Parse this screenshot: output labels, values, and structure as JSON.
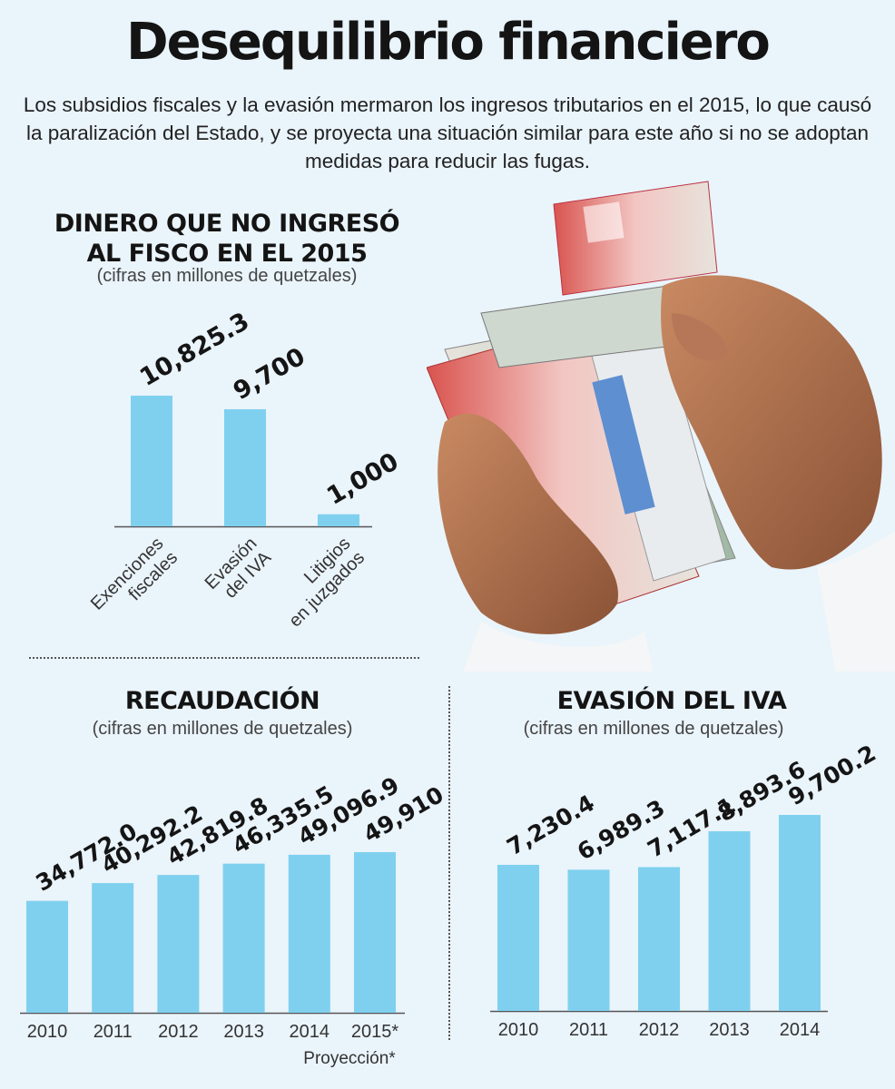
{
  "header": {
    "title": "Desequilibrio financiero",
    "intro": "Los subsidios fiscales y la evasión mermaron los ingresos tributarios en el 2015, lo que causó la paralización del Estado, y se proyecta una situación similar para este año si no se adoptan medidas para reducir las fugas."
  },
  "sections": {
    "dinero": {
      "title_line1": "DINERO QUE NO INGRESÓ",
      "title_line2": "AL FISCO EN EL 2015",
      "subtitle": "(cifras en millones de quetzales)"
    },
    "recaudacion": {
      "title": "RECAUDACIÓN",
      "subtitle": "(cifras en millones de quetzales)",
      "note": "Proyección*"
    },
    "evasion": {
      "title": "EVASIÓN DEL IVA",
      "subtitle": "(cifras en millones de quetzales)"
    }
  },
  "colors": {
    "bar": "#7fd0ef",
    "background": "#eaf4fb",
    "axis": "#555555"
  },
  "photo": {
    "icon": "money-hands-illustration"
  },
  "chart_data": [
    {
      "id": "dinero",
      "type": "bar",
      "title": "DINERO QUE NO INGRESÓ AL FISCO EN EL 2015",
      "categories": [
        [
          "Exenciones",
          "fiscales"
        ],
        [
          "Evasión",
          "del IVA"
        ],
        [
          "Litigios",
          "en juzgados"
        ]
      ],
      "values": [
        10825.3,
        9700,
        1000
      ],
      "labels": [
        "10,825.3",
        "9,700",
        "1,000"
      ],
      "ylim": [
        0,
        10825.3
      ]
    },
    {
      "id": "recaudacion",
      "type": "bar",
      "title": "RECAUDACIÓN",
      "categories": [
        "2010",
        "2011",
        "2012",
        "2013",
        "2014",
        "2015*"
      ],
      "values": [
        34772.0,
        40292.2,
        42819.8,
        46335.5,
        49096.9,
        49910
      ],
      "labels": [
        "34,772.0",
        "40,292.2",
        "42,819.8",
        "46,335.5",
        "49,096.9",
        "49,910"
      ],
      "ylim": [
        0,
        49910
      ]
    },
    {
      "id": "evasion",
      "type": "bar",
      "title": "EVASIÓN DEL IVA",
      "categories": [
        "2010",
        "2011",
        "2012",
        "2013",
        "2014"
      ],
      "values": [
        7230.4,
        6989.3,
        7117.1,
        8893.6,
        9700.2
      ],
      "labels": [
        "7,230.4",
        "6,989.3",
        "7,117.1",
        "8,893.6",
        "9,700.2"
      ],
      "ylim": [
        0,
        9700.2
      ]
    }
  ]
}
